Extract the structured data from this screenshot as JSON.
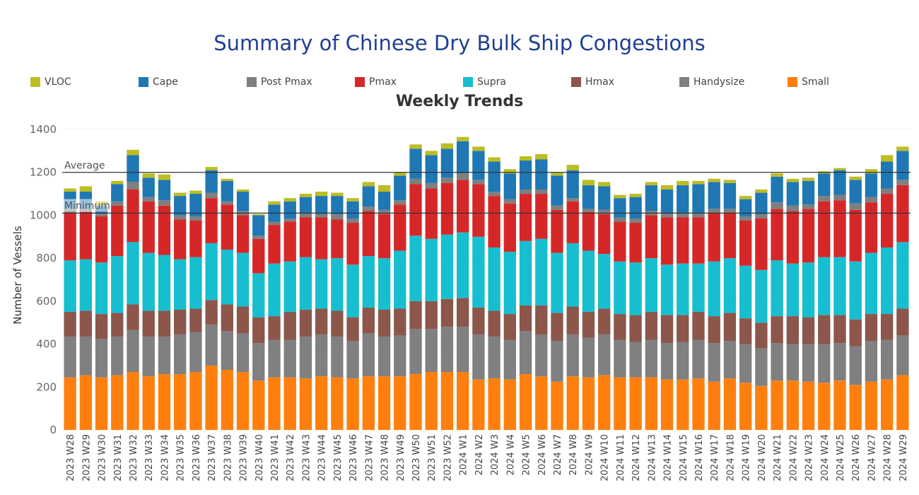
{
  "title": "Summary of Chinese Dry Bulk Ship Congestions",
  "subtitle": "Weekly Trends",
  "colors": {
    "VLOC": "#bcbd22",
    "Cape": "#1f77b4",
    "Post Pmax": "#7f7f7f",
    "Pmax": "#d62728",
    "Supra": "#17becf",
    "Hmax": "#8c564b",
    "Handysize": "#808080",
    "Small": "#ff7f0e"
  },
  "chart_data": {
    "type": "bar",
    "stacked": true,
    "title": "Weekly Trends",
    "ylabel": "Number of Vessels",
    "xlabel": "",
    "ylim": [
      0,
      1400
    ],
    "yticks": [
      0,
      200,
      400,
      600,
      800,
      1000,
      1200,
      1400
    ],
    "legend": [
      "VLOC",
      "Cape",
      "Post Pmax",
      "Pmax",
      "Supra",
      "Hmax",
      "Handysize",
      "Small"
    ],
    "reference_lines": [
      {
        "label": "Average",
        "value": 1200
      },
      {
        "label": "Minimum",
        "value": 1010
      }
    ],
    "categories": [
      "2023 W28",
      "2023 W29",
      "2023 W30",
      "2023 W31",
      "2023 W32",
      "2023 W33",
      "2023 W34",
      "2023 W35",
      "2023 W36",
      "2023 W37",
      "2023 W38",
      "2023 W39",
      "2023 W40",
      "2023 W41",
      "2023 W42",
      "2023 W43",
      "2023 W44",
      "2023 W45",
      "2023 W46",
      "2023 W47",
      "2023 W48",
      "2023 W49",
      "2023 W50",
      "2023 W51",
      "2023 W52",
      "2024 W1",
      "2024 W2",
      "2024 W3",
      "2024 W4",
      "2024 W5",
      "2024 W6",
      "2024 W7",
      "2024 W8",
      "2024 W9",
      "2024 W10",
      "2024 W11",
      "2024 W12",
      "2024 W13",
      "2024 W14",
      "2024 W15",
      "2024 W16",
      "2024 W17",
      "2024 W18",
      "2024 W19",
      "2024 W20",
      "2024 W21",
      "2024 W22",
      "2024 W23",
      "2024 W24",
      "2024 W25",
      "2024 W26",
      "2024 W27",
      "2024 W28",
      "2024 W29"
    ],
    "series": [
      {
        "name": "Small",
        "values": [
          245,
          255,
          245,
          255,
          270,
          250,
          260,
          260,
          270,
          300,
          280,
          270,
          230,
          245,
          245,
          240,
          250,
          245,
          240,
          250,
          250,
          250,
          260,
          270,
          270,
          270,
          235,
          240,
          235,
          260,
          250,
          225,
          250,
          245,
          255,
          245,
          245,
          245,
          235,
          235,
          240,
          225,
          240,
          220,
          205,
          230,
          230,
          225,
          220,
          230,
          210,
          225,
          235,
          255
        ]
      },
      {
        "name": "Handysize",
        "values": [
          190,
          180,
          180,
          180,
          195,
          185,
          175,
          185,
          185,
          190,
          180,
          180,
          175,
          175,
          175,
          195,
          195,
          190,
          175,
          200,
          185,
          190,
          210,
          200,
          210,
          210,
          210,
          195,
          185,
          200,
          195,
          190,
          195,
          185,
          190,
          175,
          165,
          175,
          170,
          175,
          180,
          180,
          175,
          180,
          175,
          175,
          170,
          175,
          180,
          175,
          180,
          190,
          185,
          185
        ]
      },
      {
        "name": "Hmax",
        "values": [
          115,
          120,
          115,
          110,
          120,
          120,
          120,
          115,
          110,
          115,
          125,
          125,
          120,
          110,
          130,
          125,
          120,
          120,
          110,
          120,
          125,
          125,
          130,
          130,
          130,
          135,
          125,
          120,
          120,
          120,
          135,
          130,
          130,
          120,
          120,
          120,
          125,
          130,
          130,
          125,
          130,
          125,
          130,
          120,
          120,
          125,
          130,
          125,
          135,
          130,
          125,
          125,
          120,
          125
        ]
      },
      {
        "name": "Supra",
        "values": [
          240,
          240,
          240,
          265,
          290,
          270,
          260,
          235,
          240,
          265,
          255,
          250,
          205,
          245,
          235,
          245,
          230,
          245,
          245,
          240,
          240,
          270,
          305,
          290,
          300,
          305,
          330,
          295,
          290,
          300,
          310,
          280,
          295,
          285,
          255,
          245,
          245,
          250,
          235,
          240,
          225,
          255,
          255,
          245,
          245,
          260,
          245,
          255,
          270,
          270,
          270,
          285,
          310,
          310
        ]
      },
      {
        "name": "Pmax",
        "values": [
          220,
          220,
          215,
          235,
          245,
          240,
          230,
          185,
          170,
          210,
          210,
          175,
          160,
          180,
          185,
          185,
          195,
          180,
          195,
          210,
          205,
          215,
          240,
          235,
          240,
          245,
          245,
          240,
          225,
          220,
          210,
          200,
          195,
          180,
          185,
          185,
          185,
          200,
          220,
          215,
          215,
          225,
          210,
          210,
          240,
          240,
          245,
          250,
          260,
          265,
          240,
          235,
          250,
          265
        ]
      },
      {
        "name": "Post Pmax",
        "values": [
          20,
          15,
          15,
          20,
          35,
          20,
          25,
          20,
          20,
          25,
          15,
          20,
          15,
          15,
          15,
          20,
          15,
          25,
          20,
          20,
          20,
          20,
          25,
          25,
          25,
          30,
          20,
          20,
          20,
          20,
          20,
          20,
          15,
          15,
          20,
          20,
          20,
          20,
          20,
          20,
          20,
          20,
          20,
          20,
          20,
          30,
          25,
          20,
          25,
          25,
          30,
          25,
          25,
          25
        ]
      },
      {
        "name": "Cape",
        "values": [
          80,
          80,
          35,
          80,
          125,
          90,
          95,
          90,
          105,
          105,
          95,
          90,
          95,
          80,
          80,
          75,
          85,
          85,
          80,
          95,
          85,
          115,
          140,
          130,
          135,
          150,
          135,
          140,
          120,
          135,
          140,
          140,
          130,
          110,
          110,
          90,
          100,
          120,
          110,
          130,
          135,
          125,
          120,
          80,
          100,
          120,
          110,
          110,
          105,
          115,
          110,
          110,
          125,
          135
        ]
      },
      {
        "name": "VLOC",
        "values": [
          15,
          25,
          20,
          15,
          25,
          20,
          25,
          15,
          15,
          15,
          10,
          10,
          5,
          15,
          15,
          15,
          20,
          15,
          15,
          20,
          30,
          15,
          20,
          20,
          25,
          20,
          20,
          20,
          20,
          20,
          25,
          15,
          25,
          25,
          20,
          15,
          15,
          15,
          20,
          20,
          15,
          15,
          15,
          15,
          15,
          15,
          15,
          15,
          10,
          10,
          15,
          20,
          30,
          20
        ]
      }
    ]
  }
}
